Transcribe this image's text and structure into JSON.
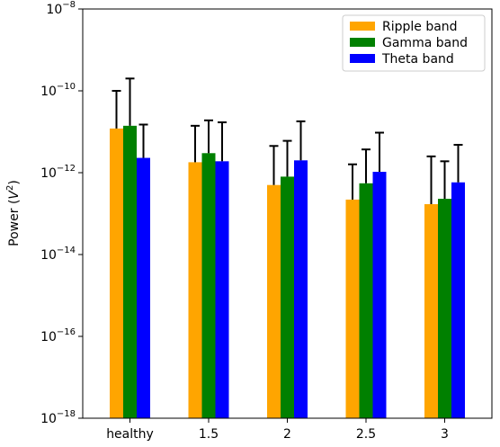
{
  "chart_data": {
    "type": "bar",
    "categories": [
      "healthy",
      "1.5",
      "2",
      "2.5",
      "3"
    ],
    "ylabel": "Power (V²)",
    "yscale": "log",
    "ylim": [
      1e-18,
      1e-08
    ],
    "yticks": [
      {
        "value": 1e-08,
        "base": "10",
        "exp": "−8"
      },
      {
        "value": 1e-10,
        "base": "10",
        "exp": "−10"
      },
      {
        "value": 1e-12,
        "base": "10",
        "exp": "−12"
      },
      {
        "value": 1e-14,
        "base": "10",
        "exp": "−14"
      },
      {
        "value": 1e-16,
        "base": "10",
        "exp": "−16"
      },
      {
        "value": 1e-18,
        "base": "10",
        "exp": "−18"
      }
    ],
    "legend_position": "top-right",
    "grid": false,
    "series": [
      {
        "name": "Ripple band",
        "color": "#FFA500",
        "values": [
          1.2e-11,
          1.8e-12,
          5e-13,
          2.2e-13,
          1.7e-13
        ],
        "error_upper": [
          1e-10,
          1.4e-11,
          4.5e-12,
          1.6e-12,
          2.5e-12
        ]
      },
      {
        "name": "Gamma band",
        "color": "#008000",
        "values": [
          1.4e-11,
          3e-12,
          8e-13,
          5.5e-13,
          2.3e-13
        ],
        "error_upper": [
          2e-10,
          1.9e-11,
          6e-12,
          3.7e-12,
          1.9e-12
        ]
      },
      {
        "name": "Theta band",
        "color": "#0000FF",
        "values": [
          2.3e-12,
          1.9e-12,
          2e-12,
          1.05e-12,
          5.8e-13
        ],
        "error_upper": [
          1.5e-11,
          1.7e-11,
          1.8e-11,
          9.5e-12,
          4.8e-12
        ]
      }
    ]
  }
}
